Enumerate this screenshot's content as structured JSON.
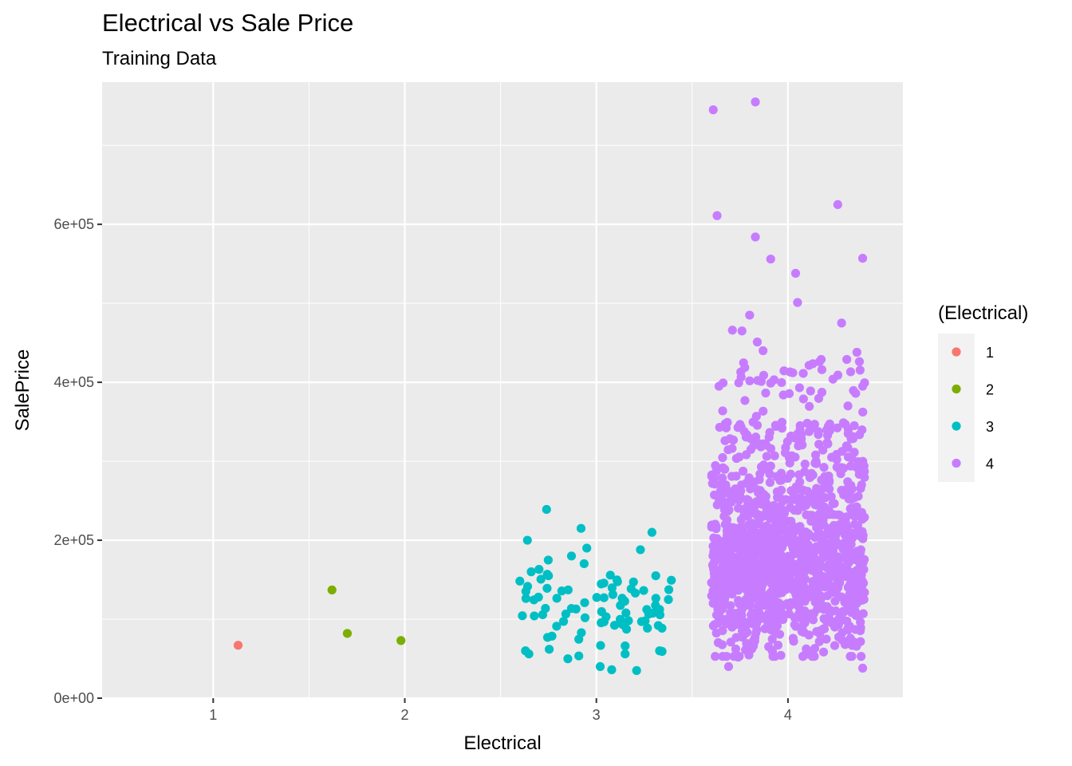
{
  "chart_data": {
    "type": "scatter",
    "title": "Electrical vs Sale Price",
    "subtitle": "Training Data",
    "xlabel": "Electrical",
    "ylabel": "SalePrice",
    "xlim": [
      0.42,
      4.6
    ],
    "ylim": [
      0,
      780000
    ],
    "x_ticks": [
      1,
      2,
      3,
      4
    ],
    "x_tick_labels": [
      "1",
      "2",
      "3",
      "4"
    ],
    "y_ticks": [
      0,
      200000,
      400000,
      600000
    ],
    "y_tick_labels": [
      "0e+00",
      "2e+05",
      "4e+05",
      "6e+05"
    ],
    "x_minor_ticks": [
      1.5,
      2.5,
      3.5
    ],
    "y_minor_ticks": [
      100000,
      300000,
      500000,
      700000
    ],
    "grid": true,
    "jitter_width": 0.4,
    "legend": {
      "title": "(Electrical)",
      "position": "right",
      "entries": [
        "1",
        "2",
        "3",
        "4"
      ]
    },
    "series": [
      {
        "category": 1,
        "color": "#F8766D",
        "count": 1,
        "points": [
          [
            1.13,
            67000
          ]
        ]
      },
      {
        "category": 2,
        "color": "#7CAE00",
        "count": 3,
        "points": [
          [
            1.62,
            137000
          ],
          [
            1.7,
            82000
          ],
          [
            1.98,
            73000
          ]
        ]
      },
      {
        "category": 3,
        "color": "#00BFC4",
        "count": 94,
        "price_range": [
          34900,
          239000
        ],
        "typical_center": 120000,
        "notable_points": [
          [
            2.74,
            239000
          ],
          [
            2.92,
            215000
          ],
          [
            3.29,
            210000
          ],
          [
            2.64,
            200000
          ],
          [
            2.95,
            190000
          ],
          [
            3.23,
            188000
          ],
          [
            2.87,
            180000
          ],
          [
            2.66,
            160000
          ],
          [
            3.31,
            155000
          ],
          [
            2.75,
            155000
          ],
          [
            2.63,
            60000
          ],
          [
            3.33,
            60000
          ],
          [
            3.02,
            40000
          ],
          [
            3.08,
            36000
          ],
          [
            3.21,
            35000
          ],
          [
            3.15,
            56000
          ]
        ]
      },
      {
        "category": 4,
        "color": "#C77CFF",
        "count": 1334,
        "price_range": [
          37900,
          755000
        ],
        "typical_center": 165000,
        "notable_points": [
          [
            3.83,
            755000
          ],
          [
            3.61,
            745000
          ],
          [
            4.26,
            625000
          ],
          [
            3.63,
            611000
          ],
          [
            3.83,
            584000
          ],
          [
            4.39,
            557000
          ],
          [
            3.91,
            556000
          ],
          [
            4.04,
            538000
          ],
          [
            4.05,
            501000
          ],
          [
            3.8,
            485000
          ],
          [
            4.28,
            475000
          ],
          [
            3.71,
            466000
          ],
          [
            3.76,
            465000
          ],
          [
            3.84,
            451000
          ],
          [
            3.87,
            440000
          ],
          [
            4.36,
            438000
          ],
          [
            4.39,
            395000
          ],
          [
            3.64,
            395000
          ],
          [
            3.74,
            52000
          ],
          [
            3.69,
            40000
          ],
          [
            4.39,
            38000
          ],
          [
            4.09,
            55000
          ],
          [
            4.14,
            63000
          ]
        ]
      }
    ]
  }
}
